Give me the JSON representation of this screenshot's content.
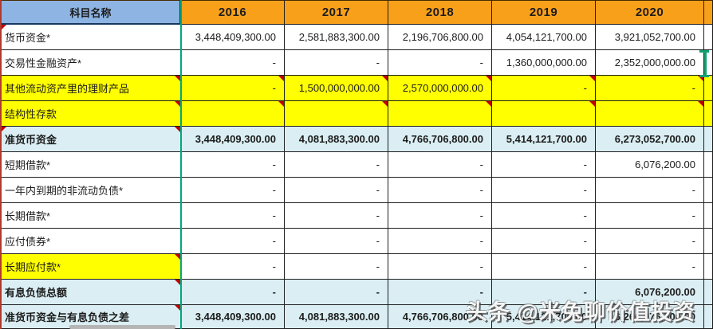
{
  "header": {
    "subject_label": "科目名称",
    "years": [
      "2016",
      "2017",
      "2018",
      "2019",
      "2020"
    ]
  },
  "rows": [
    {
      "label": "货币资金*",
      "label_bg": "white",
      "value_bg": "white",
      "bold": false,
      "comment_label": false,
      "comment_values": false,
      "left_marker": true,
      "selection_bracket": false,
      "values": [
        "3,448,409,300.00",
        "2,581,883,300.00",
        "2,196,706,800.00",
        "4,054,121,700.00",
        "3,921,052,700.00"
      ]
    },
    {
      "label": "交易性金融资产*",
      "label_bg": "white",
      "value_bg": "white",
      "bold": false,
      "comment_label": false,
      "comment_values": false,
      "left_marker": false,
      "selection_bracket": true,
      "values": [
        "-",
        "-",
        "-",
        "1,360,000,000.00",
        "2,352,000,000.00"
      ]
    },
    {
      "label": "其他流动资产里的理财产品",
      "label_bg": "yellow",
      "value_bg": "yellow",
      "bold": false,
      "comment_label": true,
      "comment_values": true,
      "left_marker": false,
      "selection_bracket": false,
      "values": [
        "-",
        "1,500,000,000.00",
        "2,570,000,000.00",
        "-",
        "-"
      ]
    },
    {
      "label": "结构性存款",
      "label_bg": "yellow",
      "value_bg": "yellow",
      "bold": false,
      "comment_label": true,
      "comment_values": true,
      "left_marker": false,
      "selection_bracket": false,
      "values": [
        "",
        "",
        "",
        "",
        ""
      ]
    },
    {
      "label": "准货币资金",
      "label_bg": "blue",
      "value_bg": "blue",
      "bold": true,
      "comment_label": true,
      "comment_values": false,
      "left_marker": true,
      "selection_bracket": false,
      "values": [
        "3,448,409,300.00",
        "4,081,883,300.00",
        "4,766,706,800.00",
        "5,414,121,700.00",
        "6,273,052,700.00"
      ]
    },
    {
      "label": "短期借款*",
      "label_bg": "white",
      "value_bg": "white",
      "bold": false,
      "comment_label": false,
      "comment_values": false,
      "left_marker": false,
      "selection_bracket": false,
      "values": [
        "-",
        "-",
        "-",
        "-",
        "6,076,200.00"
      ]
    },
    {
      "label": "一年内到期的非流动负债*",
      "label_bg": "white",
      "value_bg": "white",
      "bold": false,
      "comment_label": false,
      "comment_values": false,
      "left_marker": false,
      "selection_bracket": false,
      "values": [
        "-",
        "-",
        "-",
        "-",
        "-"
      ]
    },
    {
      "label": "长期借款*",
      "label_bg": "white",
      "value_bg": "white",
      "bold": false,
      "comment_label": false,
      "comment_values": false,
      "left_marker": false,
      "selection_bracket": false,
      "values": [
        "-",
        "-",
        "-",
        "-",
        "-"
      ]
    },
    {
      "label": "应付债券*",
      "label_bg": "white",
      "value_bg": "white",
      "bold": false,
      "comment_label": false,
      "comment_values": false,
      "left_marker": false,
      "selection_bracket": false,
      "values": [
        "-",
        "-",
        "-",
        "-",
        "-"
      ]
    },
    {
      "label": "长期应付款*",
      "label_bg": "yellow",
      "value_bg": "white",
      "bold": false,
      "comment_label": true,
      "comment_values": false,
      "left_marker": false,
      "selection_bracket": false,
      "values": [
        "-",
        "-",
        "-",
        "-",
        "-"
      ]
    },
    {
      "label": "有息负债总额",
      "label_bg": "blue",
      "value_bg": "blue",
      "bold": true,
      "comment_label": true,
      "comment_values": false,
      "left_marker": false,
      "selection_bracket": false,
      "values": [
        "-",
        "-",
        "-",
        "-",
        "6,076,200.00"
      ]
    },
    {
      "label": "准货币资金与有息负债之差",
      "label_bg": "blue",
      "value_bg": "blue",
      "bold": true,
      "comment_label": true,
      "comment_values": false,
      "left_marker": false,
      "selection_bracket": false,
      "values": [
        "3,448,409,300.00",
        "4,081,883,300.00",
        "4,766,706,800.00",
        "5,414,121,700.00",
        "6,266,976,500.00"
      ]
    }
  ],
  "watermark": {
    "text": "头条 @米兔聊价值投资"
  },
  "colors": {
    "header_orange": "#F9A01B",
    "header_blue": "#8DB4E2",
    "header_border_blue": "#17375D",
    "band_blue": "#DAEEF3",
    "band_yellow": "#FFFF00",
    "divider_teal": "#00A87E",
    "comment_red": "#C00000",
    "selection_green": "#12A070",
    "left_edge_red": "#B03A2E"
  }
}
